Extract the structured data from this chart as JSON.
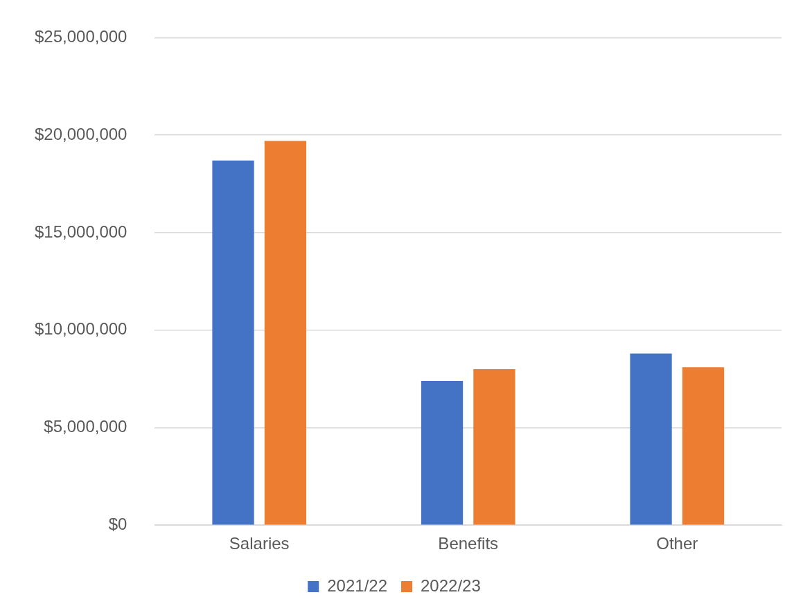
{
  "chart_data": {
    "type": "bar",
    "categories": [
      "Salaries",
      "Benefits",
      "Other"
    ],
    "series": [
      {
        "name": "2021/22",
        "color": "#4472c4",
        "values": [
          18700000,
          7400000,
          8800000
        ]
      },
      {
        "name": "2022/23",
        "color": "#ed7d31",
        "values": [
          19700000,
          8000000,
          8100000
        ]
      }
    ],
    "ylim": [
      0,
      25000000
    ],
    "yticks": [
      {
        "value": 0,
        "label": "$0"
      },
      {
        "value": 5000000,
        "label": "$5,000,000"
      },
      {
        "value": 10000000,
        "label": "$10,000,000"
      },
      {
        "value": 15000000,
        "label": "$15,000,000"
      },
      {
        "value": 20000000,
        "label": "$20,000,000"
      },
      {
        "value": 25000000,
        "label": "$25,000,000"
      }
    ],
    "grid": "y",
    "legend": "bottom"
  }
}
